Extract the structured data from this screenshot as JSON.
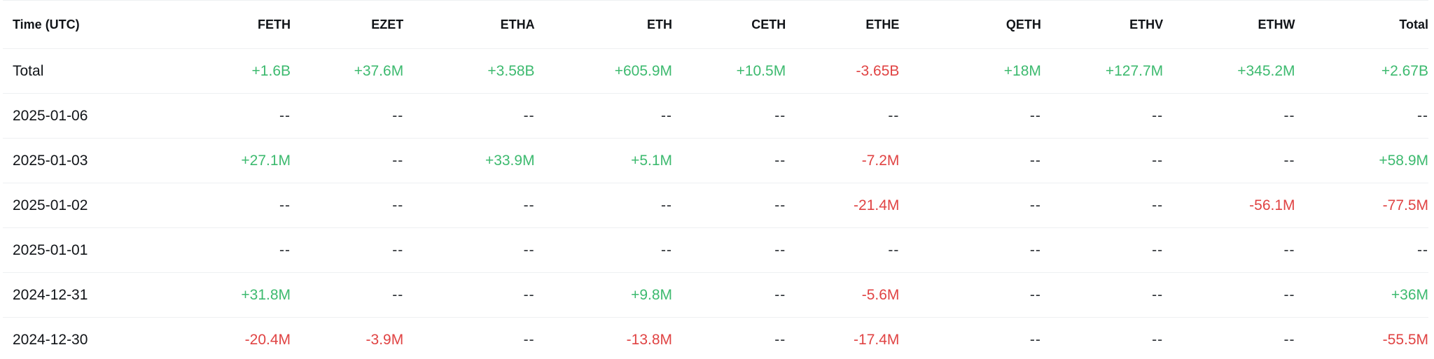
{
  "colors": {
    "positive": "#3dba6f",
    "negative": "#e04343",
    "neutral": "#2a2e33"
  },
  "table": {
    "headers": [
      "Time (UTC)",
      "FETH",
      "EZET",
      "ETHA",
      "ETH",
      "CETH",
      "ETHE",
      "QETH",
      "ETHV",
      "ETHW",
      "Total"
    ],
    "rows": [
      [
        "Total",
        "+1.6B",
        "+37.6M",
        "+3.58B",
        "+605.9M",
        "+10.5M",
        "-3.65B",
        "+18M",
        "+127.7M",
        "+345.2M",
        "+2.67B"
      ],
      [
        "2025-01-06",
        "--",
        "--",
        "--",
        "--",
        "--",
        "--",
        "--",
        "--",
        "--",
        "--"
      ],
      [
        "2025-01-03",
        "+27.1M",
        "--",
        "+33.9M",
        "+5.1M",
        "--",
        "-7.2M",
        "--",
        "--",
        "--",
        "+58.9M"
      ],
      [
        "2025-01-02",
        "--",
        "--",
        "--",
        "--",
        "--",
        "-21.4M",
        "--",
        "--",
        "-56.1M",
        "-77.5M"
      ],
      [
        "2025-01-01",
        "--",
        "--",
        "--",
        "--",
        "--",
        "--",
        "--",
        "--",
        "--",
        "--"
      ],
      [
        "2024-12-31",
        "+31.8M",
        "--",
        "--",
        "+9.8M",
        "--",
        "-5.6M",
        "--",
        "--",
        "--",
        "+36M"
      ],
      [
        "2024-12-30",
        "-20.4M",
        "-3.9M",
        "--",
        "-13.8M",
        "--",
        "-17.4M",
        "--",
        "--",
        "--",
        "-55.5M"
      ]
    ]
  }
}
